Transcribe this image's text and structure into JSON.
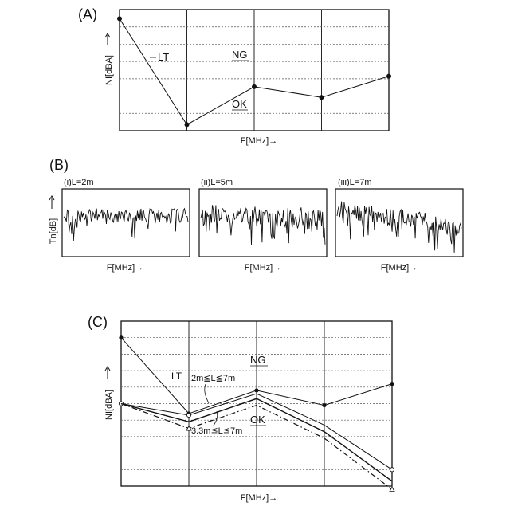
{
  "panel_a": {
    "label": "(A)",
    "ylabel": "NI[dBA]",
    "xlabel": "F[MHz]→",
    "lt_label": "LT",
    "ng_label": "NG",
    "ok_label": "OK",
    "chart_data": {
      "type": "line",
      "x": [
        0,
        1,
        2,
        3,
        4
      ],
      "ylim": [
        0,
        8
      ],
      "series": [
        {
          "values": [
            7.4,
            0.4,
            2.9,
            2.2,
            3.6
          ]
        }
      ]
    }
  },
  "panel_b": {
    "label": "(B)",
    "ylabel": "Tn[dB]",
    "charts": [
      {
        "title": "(i)L=2m",
        "xlabel": "F[MHz]→"
      },
      {
        "title": "(ii)L=5m",
        "xlabel": "F[MHz]→"
      },
      {
        "title": "(iii)L=7m",
        "xlabel": "F[MHz]→"
      }
    ]
  },
  "panel_c": {
    "label": "(C)",
    "ylabel": "NI[dBA]",
    "xlabel": "F[MHz]→",
    "lt_label": "LT",
    "ng_label": "NG",
    "ok_label": "OK",
    "range_upper_label": "2m≦L≦7m",
    "range_lower_label": "3.3m≦L≦7m",
    "chart_data": {
      "type": "line",
      "x": [
        0,
        1,
        2,
        3,
        4
      ],
      "ylim": [
        0,
        10
      ],
      "series": [
        {
          "values": [
            9.0,
            4.4,
            5.8,
            4.9,
            6.2
          ]
        },
        {
          "values": [
            5.0,
            4.3,
            5.6,
            3.7,
            1.0
          ]
        },
        {
          "values": [
            5.0,
            3.9,
            5.3,
            3.3,
            0.3
          ]
        },
        {
          "values": [
            5.0,
            3.5,
            4.9,
            2.9,
            -0.2
          ]
        }
      ]
    }
  }
}
